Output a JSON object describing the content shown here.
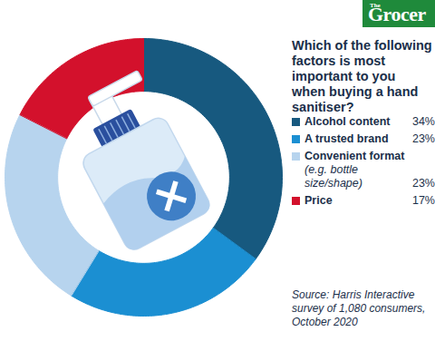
{
  "chart_data": {
    "type": "pie",
    "branding": "The Grocer",
    "title": "Which of the following factors is most important to you when buying a hand sanitiser?",
    "categories": [
      "Alcohol content",
      "A trusted brand",
      "Convenient format (e.g. bottle size/shape)",
      "Price"
    ],
    "values": [
      34,
      23,
      23,
      17
    ],
    "value_labels": [
      "34%",
      "23%",
      "23%",
      "17%"
    ],
    "colors": [
      "#17597f",
      "#1b8fd2",
      "#b7d4ee",
      "#d3112c"
    ],
    "legend": "right",
    "source": "Source: Harris Interactive survey of 1,080 consumers, October 2020"
  }
}
